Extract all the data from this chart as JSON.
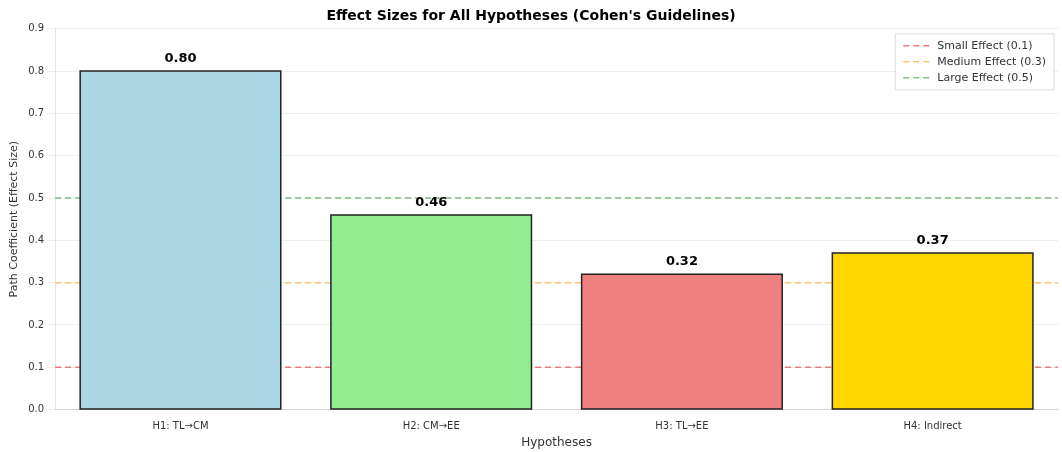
{
  "chart_data": {
    "type": "bar",
    "title": "Effect Sizes for All Hypotheses (Cohen's Guidelines)",
    "xlabel": "Hypotheses",
    "ylabel": "Path Coefficient (Effect Size)",
    "categories": [
      "H1: TL→CM",
      "H2: CM→EE",
      "H3: TL→EE",
      "H4: Indirect"
    ],
    "values": [
      0.8,
      0.46,
      0.32,
      0.37
    ],
    "colors": [
      "#add8e6",
      "#90ee90",
      "#f08080",
      "#ffd700"
    ],
    "value_labels": [
      "0.80",
      "0.46",
      "0.32",
      "0.37"
    ],
    "ylim": [
      0,
      0.9
    ],
    "yticks": [
      {
        "value": 0,
        "label": "0.0"
      },
      0.1,
      0.2,
      0.3,
      0.4,
      0.5,
      0.6,
      0.7,
      0.8,
      0.9
    ],
    "ref_lines": [
      {
        "axis": "y",
        "value": 0.1,
        "label": "Small Effect (0.1)",
        "color": "#ec7a7a",
        "line_style": "dashed"
      },
      {
        "axis": "y",
        "value": 0.3,
        "label": "Medium Effect (0.3)",
        "color": "#ffc070",
        "line_style": "dashed"
      },
      {
        "axis": "y",
        "value": 0.5,
        "label": "Large Effect (0.5)",
        "color": "#80c080",
        "line_style": "dashed"
      }
    ],
    "grid": "y",
    "legend": "top right"
  }
}
